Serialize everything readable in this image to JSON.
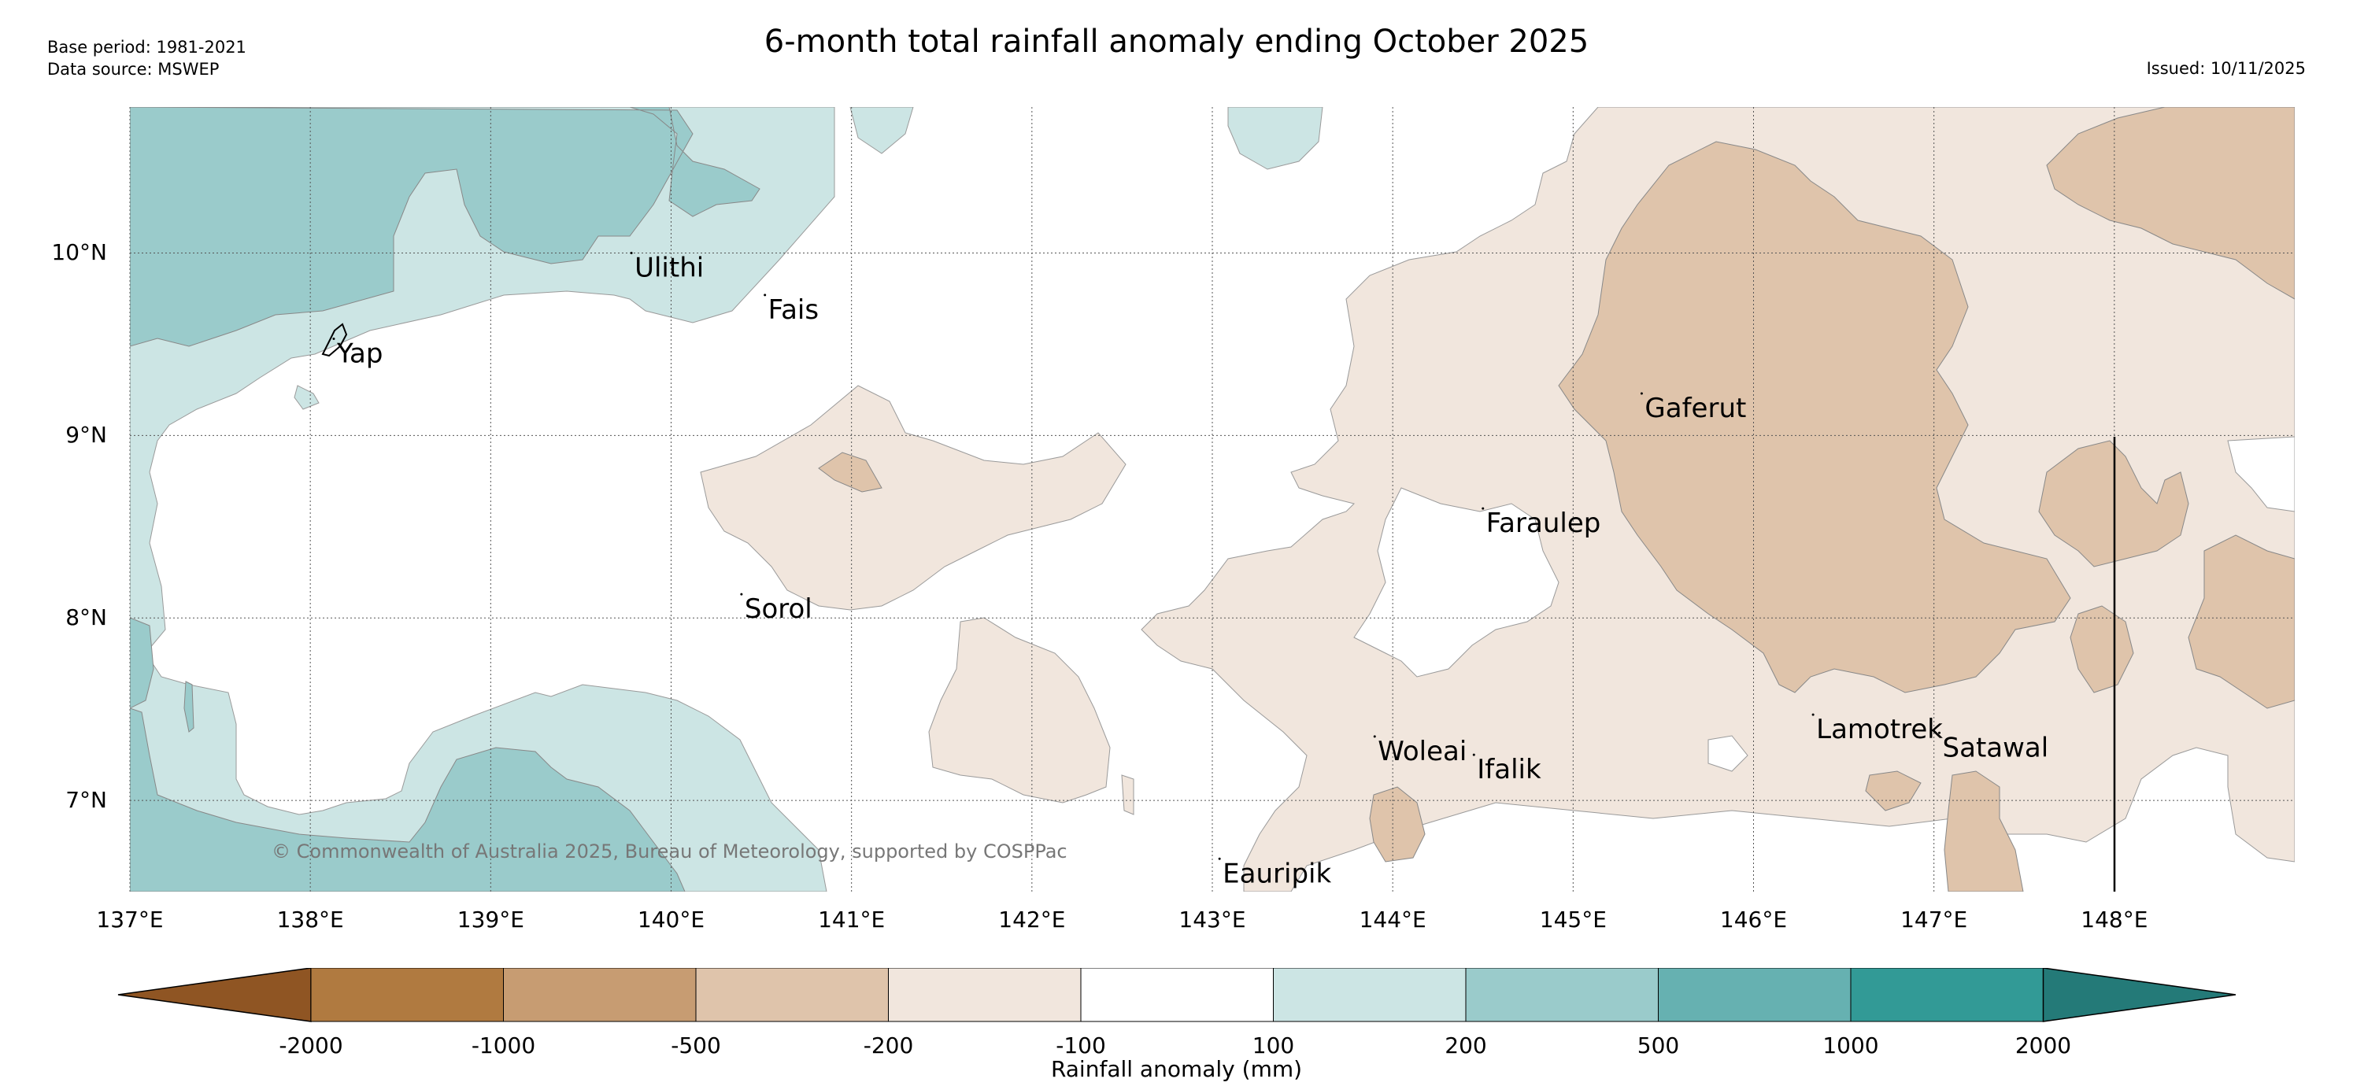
{
  "title": "6-month total rainfall anomaly ending October 2025",
  "base_period": "Base period: 1981-2021",
  "data_source": "Data source: MSWEP",
  "issued": "Issued: 10/11/2025",
  "copyright": "© Commonwealth of Australia 2025, Bureau of Meteorology, supported by COSPPac",
  "map": {
    "lon_range": [
      137,
      149
    ],
    "lat_range": [
      6.5,
      10.8
    ],
    "lat_ticks": [
      {
        "value": 10,
        "label": "10°N"
      },
      {
        "value": 9,
        "label": "9°N"
      },
      {
        "value": 8,
        "label": "8°N"
      },
      {
        "value": 7,
        "label": "7°N"
      }
    ],
    "lon_ticks": [
      {
        "value": 137,
        "label": "137°E"
      },
      {
        "value": 138,
        "label": "138°E"
      },
      {
        "value": 139,
        "label": "139°E"
      },
      {
        "value": 140,
        "label": "140°E"
      },
      {
        "value": 141,
        "label": "141°E"
      },
      {
        "value": 142,
        "label": "142°E"
      },
      {
        "value": 143,
        "label": "143°E"
      },
      {
        "value": 144,
        "label": "144°E"
      },
      {
        "value": 145,
        "label": "145°E"
      },
      {
        "value": 146,
        "label": "146°E"
      },
      {
        "value": 147,
        "label": "147°E"
      },
      {
        "value": 148,
        "label": "148°E"
      }
    ],
    "islands": [
      {
        "name": "Ulithi",
        "lon": 139.78,
        "lat": 10.0
      },
      {
        "name": "Fais",
        "lon": 140.52,
        "lat": 9.77
      },
      {
        "name": "Yap",
        "lon": 138.13,
        "lat": 9.53
      },
      {
        "name": "Gaferut",
        "lon": 145.38,
        "lat": 9.23
      },
      {
        "name": "Faraulep",
        "lon": 144.5,
        "lat": 8.6
      },
      {
        "name": "Sorol",
        "lon": 140.39,
        "lat": 8.13
      },
      {
        "name": "Woleai",
        "lon": 143.9,
        "lat": 7.35
      },
      {
        "name": "Ifalik",
        "lon": 144.45,
        "lat": 7.25
      },
      {
        "name": "Lamotrek",
        "lon": 146.33,
        "lat": 7.47
      },
      {
        "name": "Satawal",
        "lon": 147.03,
        "lat": 7.37
      },
      {
        "name": "Eauripik",
        "lon": 143.04,
        "lat": 6.68
      }
    ]
  },
  "legend": {
    "title": "Rainfall anomaly (mm)",
    "colors": [
      "#8f5523",
      "#b07a40",
      "#c79c72",
      "#dfc4ab",
      "#f1e6dd",
      "#ffffff",
      "#cce5e4",
      "#9acbcb",
      "#66b1b1",
      "#329a96",
      "#247a78"
    ],
    "labels": [
      "-2000",
      "-1000",
      "-500",
      "-200",
      "-100",
      "100",
      "200",
      "500",
      "1000",
      "2000"
    ]
  },
  "colors": {
    "wet_1": "#cce5e4",
    "wet_2": "#9acbcb",
    "dry_1": "#f1e6dd",
    "dry_2": "#dfc4ab"
  }
}
